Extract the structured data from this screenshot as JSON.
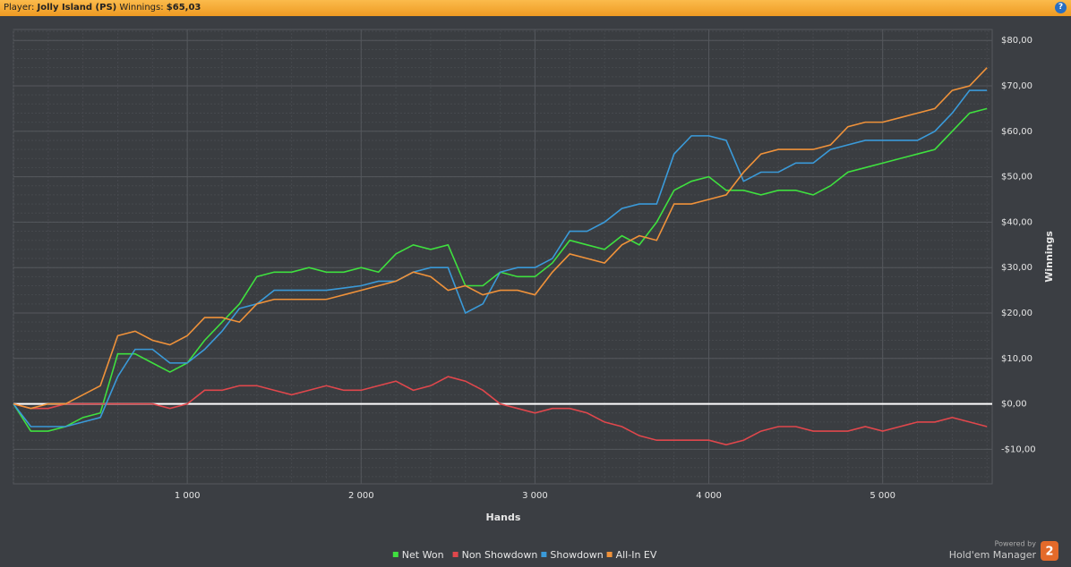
{
  "header": {
    "player_label": "Player:",
    "player": "Jolly Island (PS)",
    "winnings_label": "Winnings:",
    "winnings": "$65,03"
  },
  "chart_data": {
    "type": "line",
    "x_label": "Hands",
    "y_label": "Winnings",
    "x": [
      0,
      100,
      200,
      300,
      400,
      500,
      600,
      700,
      800,
      900,
      1000,
      1100,
      1200,
      1300,
      1400,
      1500,
      1600,
      1700,
      1800,
      1900,
      2000,
      2100,
      2200,
      2300,
      2400,
      2500,
      2600,
      2700,
      2800,
      2900,
      3000,
      3100,
      3200,
      3300,
      3400,
      3500,
      3600,
      3700,
      3800,
      3900,
      4000,
      4100,
      4200,
      4300,
      4400,
      4500,
      4600,
      4700,
      4800,
      4900,
      5000,
      5100,
      5200,
      5300,
      5400,
      5500,
      5600
    ],
    "series": [
      {
        "name": "Net Won",
        "color": "#3fe03f",
        "values": [
          0,
          -6,
          -6,
          -5,
          -3,
          -2,
          11,
          11,
          9,
          7,
          9,
          14,
          18,
          22,
          28,
          29,
          29,
          30,
          29,
          29,
          30,
          29,
          33,
          35,
          34,
          35,
          26,
          26,
          29,
          28,
          28,
          31,
          36,
          35,
          34,
          37,
          35,
          40,
          47,
          49,
          50,
          47,
          47,
          46,
          47,
          47,
          46,
          48,
          51,
          52,
          53,
          54,
          55,
          56,
          60,
          64,
          65
        ]
      },
      {
        "name": "Non Showdown",
        "color": "#e0474c",
        "values": [
          0,
          -1,
          -1,
          0,
          0,
          0,
          0,
          0,
          0,
          -1,
          0,
          3,
          3,
          4,
          4,
          3,
          2,
          3,
          4,
          3,
          3,
          4,
          5,
          3,
          4,
          6,
          5,
          3,
          0,
          -1,
          -2,
          -1,
          -1,
          -2,
          -4,
          -5,
          -7,
          -8,
          -8,
          -8,
          -8,
          -9,
          -8,
          -6,
          -5,
          -5,
          -6,
          -6,
          -6,
          -5,
          -6,
          -5,
          -4,
          -4,
          -3,
          -4,
          -5
        ]
      },
      {
        "name": "Showdown",
        "color": "#3a9ad9",
        "values": [
          0,
          -5,
          -5,
          -5,
          -4,
          -3,
          6,
          12,
          12,
          9,
          9,
          12,
          16,
          21,
          22,
          25,
          25,
          25,
          25,
          25.5,
          26,
          27,
          27,
          29,
          30,
          30,
          20,
          22,
          29,
          30,
          30,
          32,
          38,
          38,
          40,
          43,
          44,
          44,
          55,
          59,
          59,
          58,
          49,
          51,
          51,
          53,
          53,
          56,
          57,
          58,
          58,
          58,
          58,
          60,
          64,
          69,
          69
        ]
      },
      {
        "name": "All-In EV",
        "color": "#f0923a",
        "values": [
          0,
          -1,
          0,
          0,
          2,
          4,
          15,
          16,
          14,
          13,
          15,
          19,
          19,
          18,
          22,
          23,
          23,
          23,
          23,
          24,
          25,
          26,
          27,
          29,
          28,
          25,
          26,
          24,
          25,
          25,
          24,
          29,
          33,
          32,
          31,
          35,
          37,
          36,
          44,
          44,
          45,
          46,
          51,
          55,
          56,
          56,
          56,
          57,
          61,
          62,
          62,
          63,
          64,
          65,
          69,
          70,
          74
        ]
      }
    ],
    "xlim": [
      0,
      5630
    ],
    "ylim": [
      -17.6,
      82.4
    ],
    "xticks": [
      {
        "value": 1000,
        "label": "1 000"
      },
      {
        "value": 2000,
        "label": "2 000"
      },
      {
        "value": 3000,
        "label": "3 000"
      },
      {
        "value": 4000,
        "label": "4 000"
      },
      {
        "value": 5000,
        "label": "5 000"
      }
    ],
    "yticks": [
      {
        "value": -10,
        "label": "-$10,00"
      },
      {
        "value": 0,
        "label": "$0,00"
      },
      {
        "value": 10,
        "label": "$10,00"
      },
      {
        "value": 20,
        "label": "$20,00"
      },
      {
        "value": 30,
        "label": "$30,00"
      },
      {
        "value": 40,
        "label": "$40,00"
      },
      {
        "value": 50,
        "label": "$50,00"
      },
      {
        "value": 60,
        "label": "$60,00"
      },
      {
        "value": 70,
        "label": "$70,00"
      },
      {
        "value": 80,
        "label": "$80,00"
      }
    ],
    "grid": true,
    "legend": "bottom"
  },
  "branding": {
    "powered": "Powered by",
    "product": "Hold'em Manager",
    "badge": "2"
  }
}
